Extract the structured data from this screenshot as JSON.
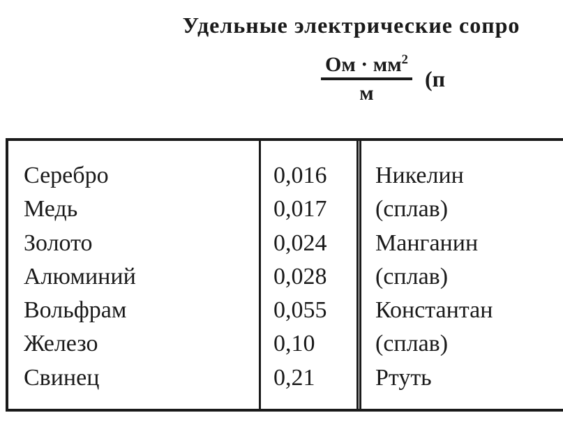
{
  "heading": "Удельные электрические сопро",
  "unit": {
    "numerator": "Ом · мм",
    "numerator_sup": "2",
    "denominator": "м",
    "paren": "(п"
  },
  "table": {
    "left": {
      "names": [
        "Серебро",
        "Медь",
        "Золото",
        "Алюминий",
        "Вольфрам",
        "Железо",
        "Свинец"
      ],
      "values": [
        "0,016",
        "0,017",
        "0,024",
        "0,028",
        "0,055",
        "0,10",
        "0,21"
      ]
    },
    "right": {
      "names": [
        "Никелин",
        "(сплав)",
        "Манганин",
        "(сплав)",
        "Константан",
        "(сплав)",
        "Ртуть"
      ]
    }
  },
  "style": {
    "text_color": "#1a1a1a",
    "background": "#ffffff",
    "border_color": "#1a1a1a",
    "heading_fontsize": 32,
    "body_fontsize": 34,
    "line_height": 1.42
  }
}
